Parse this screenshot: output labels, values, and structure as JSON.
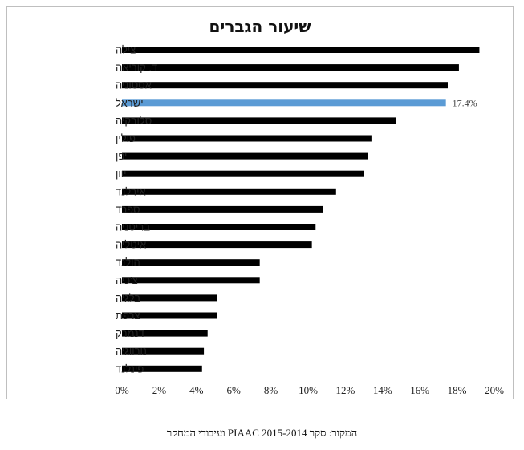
{
  "chart_data": {
    "type": "bar",
    "orientation": "horizontal",
    "title": "שיעור הגברים",
    "categories": [
      "צילה",
      "ד. קוריאה",
      "אסטוניה",
      "ישראל",
      "סלובקיה",
      "פולין",
      "יפן",
      "יוון",
      "אירלנד",
      "ספרד",
      "בריטניה",
      "איטליה",
      "הולנד",
      "צ'כיה",
      "בלגיה",
      "צרפת",
      "דנמרק",
      "נורווגיה",
      "פינלנד"
    ],
    "values": [
      19.2,
      18.1,
      17.5,
      17.4,
      14.7,
      13.4,
      13.2,
      13.0,
      11.5,
      10.8,
      10.4,
      10.2,
      7.4,
      7.4,
      5.1,
      5.1,
      4.6,
      4.4,
      4.3
    ],
    "highlight_index": 3,
    "data_labels": [
      {
        "index": 3,
        "text": "17.4%"
      }
    ],
    "xlim": [
      0,
      20
    ],
    "xticks": [
      "0%",
      "2%",
      "4%",
      "6%",
      "8%",
      "10%",
      "12%",
      "14%",
      "16%",
      "18%",
      "20%"
    ],
    "xlabel": "",
    "ylabel": "",
    "grid": false,
    "colors": {
      "bar": "#000000",
      "highlight": "#5b9bd5"
    }
  },
  "source_note": "המקור: סקר PIAAC 2015-2014 ועיבודי המחקר"
}
